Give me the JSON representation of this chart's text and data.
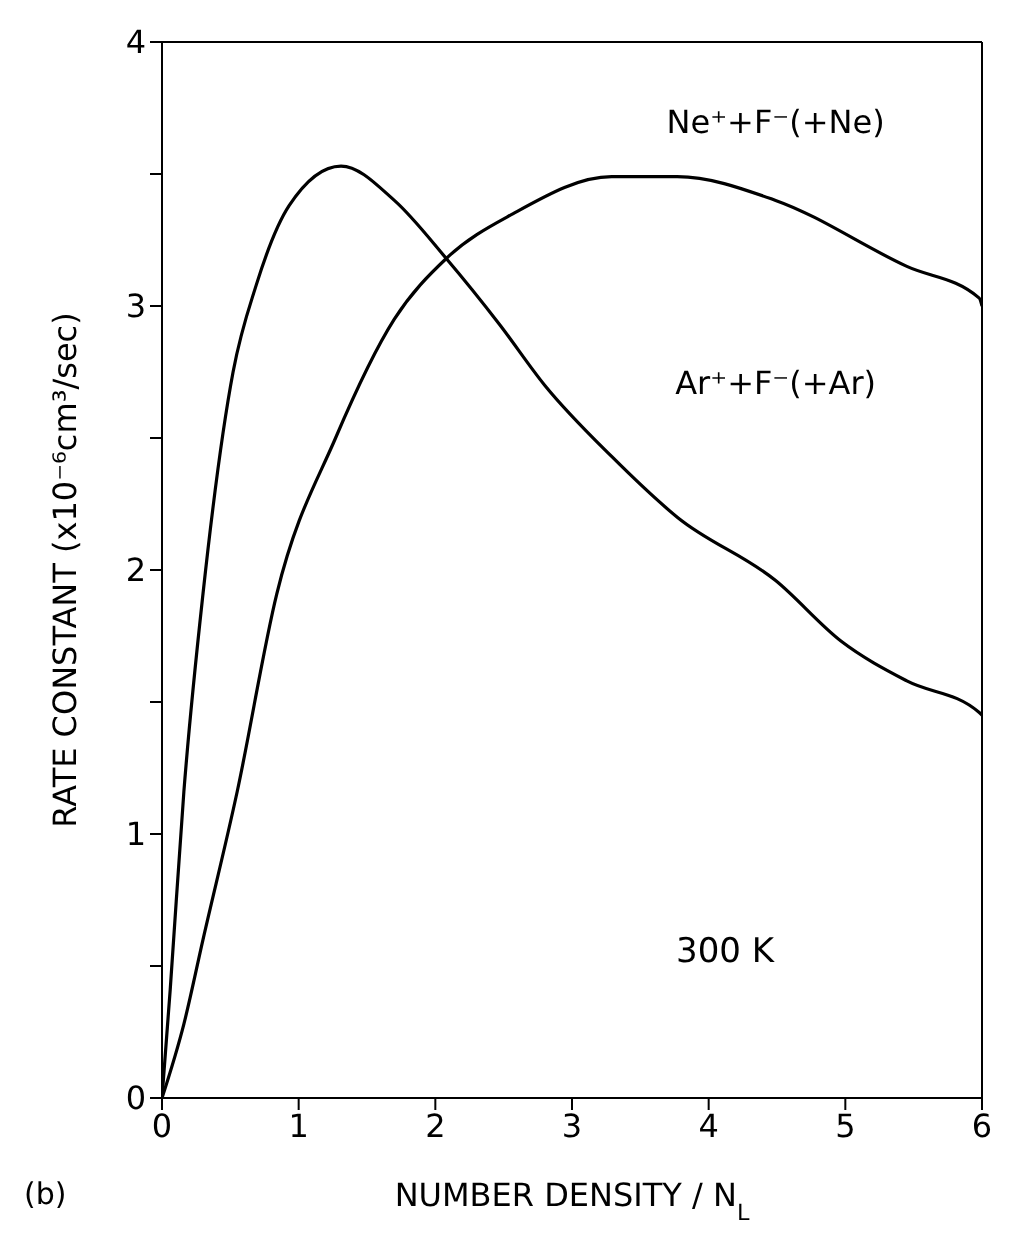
{
  "chart_data": {
    "type": "line",
    "xlabel": "NUMBER DENSITY / N$_{L}$",
    "ylabel": "RATE CONSTANT (x10⁻⁶cm³/sec)",
    "annotations": [
      "300 K",
      "(b)"
    ],
    "xlim": [
      0,
      6
    ],
    "xticks": [
      0,
      1,
      2,
      3,
      4,
      5,
      6
    ],
    "ylim": [
      0,
      4
    ],
    "yticks": [
      0,
      {
        "value": 0.5,
        "label": null
      },
      1,
      {
        "value": 1.5,
        "label": null
      },
      2,
      {
        "value": 2.5,
        "label": null
      },
      3,
      {
        "value": 3.5,
        "label": null
      },
      4
    ],
    "line_style": "solid",
    "series": [
      {
        "name": "Ne⁺+F⁻(+Ne)",
        "color": "#000000",
        "x": [
          0,
          0.16,
          0.3,
          0.55,
          0.84,
          1.27,
          1.7,
          2.08,
          2.57,
          3.29,
          3.77,
          4.49,
          5.45,
          5.98,
          6
        ],
        "values": [
          0,
          0.28,
          0.6,
          1.16,
          1.91,
          2.5,
          2.95,
          3.18,
          3.35,
          3.49,
          3.49,
          3.4,
          3.15,
          3.03,
          3.0
        ]
      },
      {
        "name": "Ar⁺+F⁻(+Ar)",
        "color": "#000000",
        "x": [
          0,
          0.06,
          0.16,
          0.3,
          0.52,
          0.69,
          0.93,
          1.31,
          1.7,
          2.08,
          2.47,
          2.8,
          3.29,
          3.77,
          4.49,
          4.97,
          5.45,
          5.98,
          6
        ],
        "values": [
          0,
          0.41,
          1.16,
          1.91,
          2.75,
          3.08,
          3.38,
          3.53,
          3.4,
          3.18,
          2.93,
          2.7,
          2.43,
          2.2,
          1.96,
          1.73,
          1.58,
          1.46,
          1.45
        ]
      }
    ]
  }
}
